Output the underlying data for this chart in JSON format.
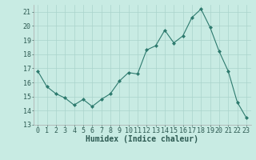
{
  "x": [
    0,
    1,
    2,
    3,
    4,
    5,
    6,
    7,
    8,
    9,
    10,
    11,
    12,
    13,
    14,
    15,
    16,
    17,
    18,
    19,
    20,
    21,
    22,
    23
  ],
  "y": [
    16.8,
    15.7,
    15.2,
    14.9,
    14.4,
    14.8,
    14.3,
    14.8,
    15.2,
    16.1,
    16.7,
    16.6,
    18.3,
    18.6,
    19.7,
    18.8,
    19.3,
    20.6,
    21.2,
    19.9,
    18.2,
    16.8,
    14.6,
    13.5
  ],
  "line_color": "#2d7a6e",
  "marker": "D",
  "marker_size": 2.0,
  "bg_color": "#c8ebe3",
  "grid_color": "#aad4cc",
  "xlabel": "Humidex (Indice chaleur)",
  "ylim": [
    13,
    21.5
  ],
  "xlim": [
    -0.5,
    23.5
  ],
  "yticks": [
    13,
    14,
    15,
    16,
    17,
    18,
    19,
    20,
    21
  ],
  "xticks": [
    0,
    1,
    2,
    3,
    4,
    5,
    6,
    7,
    8,
    9,
    10,
    11,
    12,
    13,
    14,
    15,
    16,
    17,
    18,
    19,
    20,
    21,
    22,
    23
  ],
  "tick_fontsize": 6,
  "xlabel_fontsize": 7
}
